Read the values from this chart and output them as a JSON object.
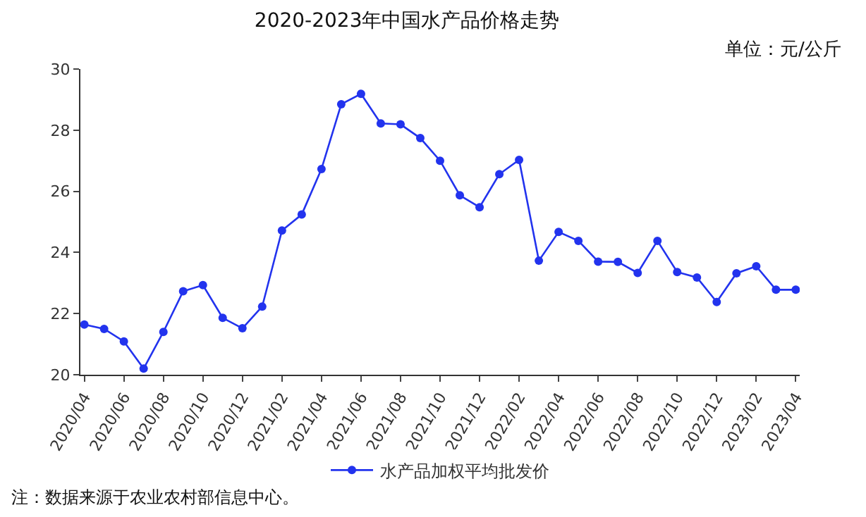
{
  "chart_data": {
    "type": "line",
    "title": "2020-2023年中国水产品价格走势",
    "categories": [
      "2020/04",
      null,
      "2020/06",
      null,
      "2020/08",
      null,
      "2020/10",
      null,
      "2020/12",
      null,
      "2021/02",
      null,
      "2021/04",
      null,
      "2021/06",
      null,
      "2021/08",
      null,
      "2021/10",
      null,
      "2021/12",
      null,
      "2022/02",
      null,
      "2022/04",
      null,
      "2022/06",
      null,
      "2022/08",
      null,
      "2022/10",
      null,
      "2022/12",
      null,
      "2023/02",
      null,
      "2023/04"
    ],
    "series": [
      {
        "name": "水产品加权平均批发价",
        "color": "#2233ee",
        "values": [
          21.64,
          21.5,
          21.09,
          20.2,
          21.4,
          22.73,
          22.93,
          21.86,
          21.52,
          22.23,
          24.72,
          25.24,
          26.73,
          28.85,
          29.19,
          28.22,
          28.19,
          27.74,
          27.0,
          25.87,
          25.48,
          26.56,
          27.03,
          23.73,
          24.67,
          24.38,
          23.7,
          23.69,
          23.33,
          24.38,
          23.36,
          23.18,
          22.38,
          23.32,
          23.55,
          22.78,
          22.78
        ]
      }
    ],
    "ylim": [
      20,
      30
    ],
    "yticks": [
      20,
      22,
      24,
      26,
      28,
      30
    ],
    "legend": "bottom",
    "marker": "circle",
    "line_style": "solid",
    "annotations": [
      "单位：元/公斤",
      "注：数据来源于农业农村部信息中心。"
    ]
  }
}
